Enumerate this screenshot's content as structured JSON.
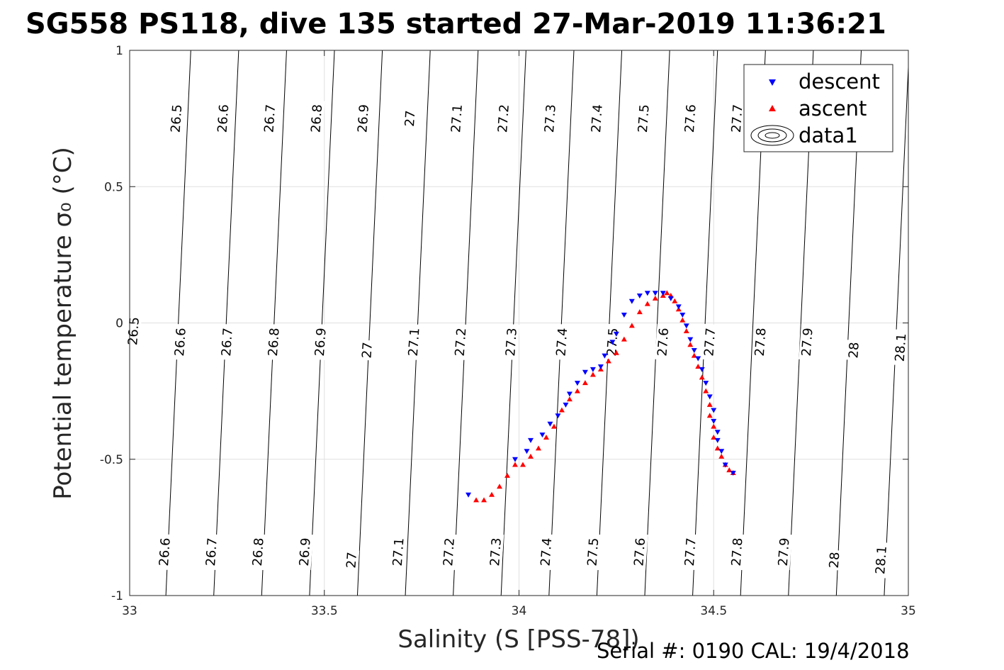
{
  "chart_data": {
    "type": "scatter",
    "title": "SG558 PS118, dive 135 started 27-Mar-2019 11:36:21",
    "xlabel": "Salinity (S [PSS-78])",
    "ylabel": "Potential temperature σ₀ (°C)",
    "xlim": [
      33,
      35
    ],
    "ylim": [
      -1,
      1
    ],
    "xticks": [
      33,
      33.5,
      34,
      34.5,
      35
    ],
    "yticks": [
      -1,
      -0.5,
      0,
      0.5,
      1
    ],
    "xtick_labels": [
      "33",
      "33.5",
      "34",
      "34.5",
      "35"
    ],
    "ytick_labels": [
      "-1",
      "-0.5",
      "0",
      "0.5",
      "1"
    ],
    "grid": true,
    "legend_position": "top-right",
    "legend": [
      "descent",
      "ascent",
      "data1"
    ],
    "footer": "Serial #: 0190  CAL: 19/4/2018",
    "colors": {
      "descent": "#0000ff",
      "ascent": "#ff0000",
      "contour": "#000000",
      "grid": "#e0e0e0"
    },
    "contour_levels": [
      26.5,
      26.6,
      26.7,
      26.8,
      26.9,
      27,
      27.1,
      27.2,
      27.3,
      27.4,
      27.5,
      27.6,
      27.7,
      27.8,
      27.9,
      28,
      28.1
    ],
    "contour_labels": [
      {
        "text": "26.5",
        "s": 33.12,
        "t": 0.75
      },
      {
        "text": "26.6",
        "s": 33.24,
        "t": 0.75
      },
      {
        "text": "26.7",
        "s": 33.36,
        "t": 0.75
      },
      {
        "text": "26.8",
        "s": 33.48,
        "t": 0.75
      },
      {
        "text": "26.9",
        "s": 33.6,
        "t": 0.75
      },
      {
        "text": "27",
        "s": 33.72,
        "t": 0.75
      },
      {
        "text": "27.1",
        "s": 33.84,
        "t": 0.75
      },
      {
        "text": "27.2",
        "s": 33.96,
        "t": 0.75
      },
      {
        "text": "27.3",
        "s": 34.08,
        "t": 0.75
      },
      {
        "text": "27.4",
        "s": 34.2,
        "t": 0.75
      },
      {
        "text": "27.5",
        "s": 34.32,
        "t": 0.75
      },
      {
        "text": "27.6",
        "s": 34.44,
        "t": 0.75
      },
      {
        "text": "27.7",
        "s": 34.56,
        "t": 0.75
      },
      {
        "text": "26.5",
        "s": 33.01,
        "t": -0.03
      },
      {
        "text": "26.6",
        "s": 33.13,
        "t": -0.07
      },
      {
        "text": "26.7",
        "s": 33.25,
        "t": -0.07
      },
      {
        "text": "26.8",
        "s": 33.37,
        "t": -0.07
      },
      {
        "text": "26.9",
        "s": 33.49,
        "t": -0.07
      },
      {
        "text": "27",
        "s": 33.61,
        "t": -0.1
      },
      {
        "text": "27.1",
        "s": 33.73,
        "t": -0.07
      },
      {
        "text": "27.2",
        "s": 33.85,
        "t": -0.07
      },
      {
        "text": "27.3",
        "s": 33.98,
        "t": -0.07
      },
      {
        "text": "27.4",
        "s": 34.11,
        "t": -0.07
      },
      {
        "text": "27.5",
        "s": 34.24,
        "t": -0.07
      },
      {
        "text": "27.6",
        "s": 34.37,
        "t": -0.07
      },
      {
        "text": "27.7",
        "s": 34.49,
        "t": -0.07
      },
      {
        "text": "27.8",
        "s": 34.62,
        "t": -0.07
      },
      {
        "text": "27.9",
        "s": 34.74,
        "t": -0.07
      },
      {
        "text": "28",
        "s": 34.86,
        "t": -0.1
      },
      {
        "text": "28.1",
        "s": 34.98,
        "t": -0.09
      },
      {
        "text": "26.6",
        "s": 33.09,
        "t": -0.84
      },
      {
        "text": "26.7",
        "s": 33.21,
        "t": -0.84
      },
      {
        "text": "26.8",
        "s": 33.33,
        "t": -0.84
      },
      {
        "text": "26.9",
        "s": 33.45,
        "t": -0.84
      },
      {
        "text": "27",
        "s": 33.57,
        "t": -0.87
      },
      {
        "text": "27.1",
        "s": 33.69,
        "t": -0.84
      },
      {
        "text": "27.2",
        "s": 33.82,
        "t": -0.84
      },
      {
        "text": "27.3",
        "s": 33.94,
        "t": -0.84
      },
      {
        "text": "27.4",
        "s": 34.07,
        "t": -0.84
      },
      {
        "text": "27.5",
        "s": 34.19,
        "t": -0.84
      },
      {
        "text": "27.6",
        "s": 34.31,
        "t": -0.84
      },
      {
        "text": "27.7",
        "s": 34.44,
        "t": -0.84
      },
      {
        "text": "27.8",
        "s": 34.56,
        "t": -0.84
      },
      {
        "text": "27.9",
        "s": 34.68,
        "t": -0.84
      },
      {
        "text": "28",
        "s": 34.81,
        "t": -0.87
      },
      {
        "text": "28.1",
        "s": 34.93,
        "t": -0.87
      }
    ],
    "series": [
      {
        "name": "descent",
        "marker": "triangle-down",
        "x": [
          33.87,
          33.99,
          34.02,
          34.03,
          34.06,
          34.08,
          34.1,
          34.12,
          34.13,
          34.15,
          34.17,
          34.19,
          34.21,
          34.22,
          34.24,
          34.25,
          34.27,
          34.29,
          34.31,
          34.33,
          34.35,
          34.37,
          34.39,
          34.41,
          34.42,
          34.43,
          34.44,
          34.45,
          34.46,
          34.47,
          34.48,
          34.49,
          34.5,
          34.5,
          34.51,
          34.51,
          34.52,
          34.53,
          34.55
        ],
        "y": [
          -0.63,
          -0.5,
          -0.47,
          -0.43,
          -0.41,
          -0.37,
          -0.34,
          -0.3,
          -0.26,
          -0.22,
          -0.18,
          -0.17,
          -0.16,
          -0.12,
          -0.07,
          -0.04,
          0.03,
          0.08,
          0.1,
          0.11,
          0.11,
          0.11,
          0.09,
          0.06,
          0.03,
          -0.01,
          -0.06,
          -0.1,
          -0.13,
          -0.17,
          -0.22,
          -0.27,
          -0.32,
          -0.36,
          -0.4,
          -0.43,
          -0.47,
          -0.52,
          -0.55
        ]
      },
      {
        "name": "ascent",
        "marker": "triangle-up",
        "x": [
          33.89,
          33.91,
          33.93,
          33.95,
          33.97,
          33.99,
          34.01,
          34.03,
          34.05,
          34.07,
          34.09,
          34.11,
          34.13,
          34.15,
          34.17,
          34.19,
          34.21,
          34.23,
          34.25,
          34.27,
          34.29,
          34.31,
          34.33,
          34.35,
          34.37,
          34.38,
          34.39,
          34.4,
          34.41,
          34.42,
          34.43,
          34.44,
          34.45,
          34.46,
          34.47,
          34.48,
          34.49,
          34.49,
          34.5,
          34.5,
          34.51,
          34.52,
          34.53,
          34.54,
          34.55
        ],
        "y": [
          -0.65,
          -0.65,
          -0.63,
          -0.6,
          -0.56,
          -0.52,
          -0.52,
          -0.49,
          -0.46,
          -0.42,
          -0.38,
          -0.32,
          -0.28,
          -0.25,
          -0.22,
          -0.19,
          -0.17,
          -0.14,
          -0.11,
          -0.06,
          -0.01,
          0.04,
          0.07,
          0.09,
          0.1,
          0.11,
          0.1,
          0.08,
          0.05,
          0.01,
          -0.03,
          -0.08,
          -0.12,
          -0.16,
          -0.2,
          -0.25,
          -0.3,
          -0.34,
          -0.38,
          -0.42,
          -0.46,
          -0.49,
          -0.52,
          -0.54,
          -0.55
        ]
      }
    ]
  }
}
